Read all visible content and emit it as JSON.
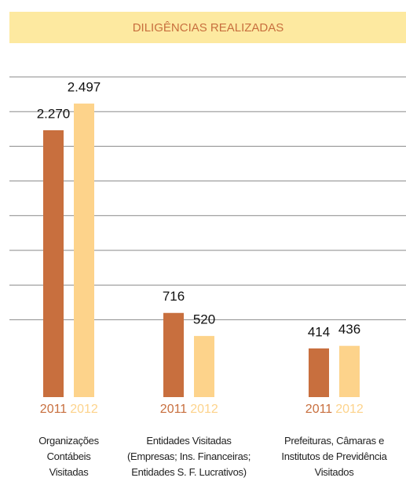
{
  "chart_data": {
    "type": "bar",
    "title": "DILIGÊNCIAS REALIZADAS",
    "categories": [
      "Organizações\nContábeis\nVisitadas",
      "Entidades Visitadas\n(Empresas; Ins. Financeiras;\nEntidades S. F. Lucrativos)",
      "Prefeituras, Câmaras e\nInstitutos de Previdência\nVisitados"
    ],
    "series": [
      {
        "name": "2011",
        "color": "#c86f3e",
        "values": [
          2270,
          716,
          414
        ],
        "value_labels": [
          "2.270",
          "716",
          "414"
        ]
      },
      {
        "name": "2012",
        "color": "#fdd38b",
        "values": [
          2497,
          520,
          436
        ],
        "value_labels": [
          "2.497",
          "520",
          "436"
        ]
      }
    ],
    "grid": true
  }
}
